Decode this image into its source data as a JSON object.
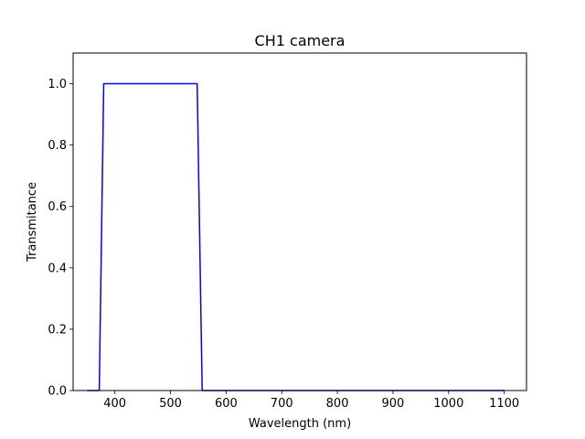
{
  "chart_data": {
    "type": "line",
    "title": "CH1 camera",
    "xlabel": "Wavelength (nm)",
    "ylabel": "Transmitance",
    "xlim": [
      325,
      1140
    ],
    "ylim": [
      0,
      1.1
    ],
    "xticks": [
      400,
      500,
      600,
      700,
      800,
      900,
      1000,
      1100
    ],
    "yticks": [
      0.0,
      0.2,
      0.4,
      0.6,
      0.8,
      1.0
    ],
    "xtick_labels": [
      "400",
      "500",
      "600",
      "700",
      "800",
      "900",
      "1000",
      "1100"
    ],
    "ytick_labels": [
      "0.0",
      "0.2",
      "0.4",
      "0.6",
      "0.8",
      "1.0"
    ],
    "grid": false,
    "series": [
      {
        "color": "#0000ff",
        "x": [
          350,
          372,
          380,
          548,
          557,
          1100
        ],
        "y": [
          0,
          0,
          1.0,
          1.0,
          0,
          0
        ]
      }
    ]
  }
}
